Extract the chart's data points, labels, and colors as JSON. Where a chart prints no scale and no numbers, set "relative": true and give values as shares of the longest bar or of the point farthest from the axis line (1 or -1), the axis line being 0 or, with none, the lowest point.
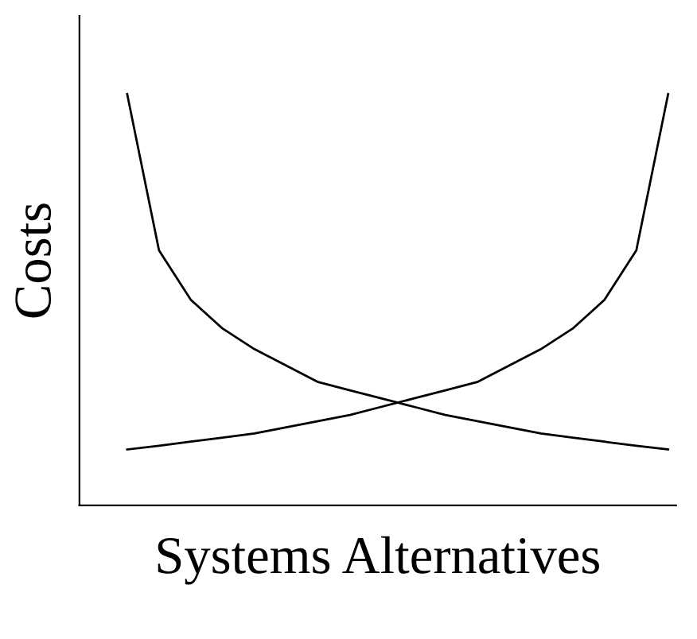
{
  "chart_data": {
    "type": "line",
    "relative": true,
    "xlabel": "Systems Alternatives",
    "ylabel": "Costs",
    "tick_labels": false,
    "grid": false,
    "legend": false,
    "marker": "none",
    "line_style": "solid",
    "categories": [
      null,
      null,
      null,
      null,
      null,
      null,
      null,
      null,
      null,
      null,
      null,
      null,
      null,
      null,
      null,
      null,
      null,
      null
    ],
    "series": [
      {
        "color": "#000000",
        "values": [
          1.0,
          0.62,
          0.5,
          0.43,
          0.38,
          0.34,
          0.3,
          0.28,
          0.26,
          0.24,
          0.22,
          0.205,
          0.19,
          0.175,
          0.165,
          0.155,
          0.145,
          0.136
        ]
      },
      {
        "color": "#000000",
        "values": [
          0.136,
          0.145,
          0.155,
          0.165,
          0.175,
          0.19,
          0.205,
          0.22,
          0.24,
          0.26,
          0.28,
          0.3,
          0.34,
          0.38,
          0.43,
          0.5,
          0.62,
          1.0
        ]
      }
    ]
  }
}
